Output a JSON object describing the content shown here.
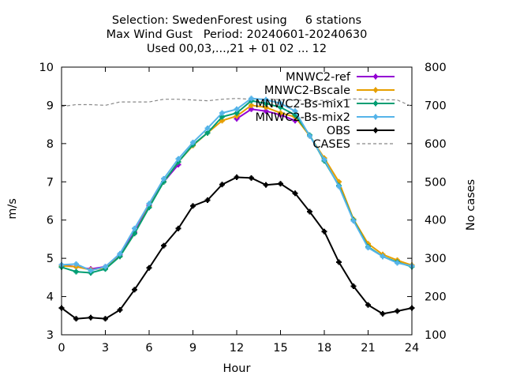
{
  "chart_data": {
    "type": "line",
    "title_lines": [
      "Selection: SwedenForest using     6 stations",
      "Max Wind Gust   Period: 20240601-20240630",
      "Used 00,03,...,21 + 01 02 ... 12"
    ],
    "xlabel": "Hour",
    "ylabel": "m/s",
    "y2label": "No cases",
    "xlim": [
      0,
      24
    ],
    "ylim": [
      3,
      10
    ],
    "y2lim": [
      100,
      800
    ],
    "x_ticks": [
      0,
      3,
      6,
      9,
      12,
      15,
      18,
      21,
      24
    ],
    "y_ticks": [
      3,
      4,
      5,
      6,
      7,
      8,
      9,
      10
    ],
    "y2_ticks": [
      100,
      200,
      300,
      400,
      500,
      600,
      700,
      800
    ],
    "grid": false,
    "legend_position": "top-right",
    "x": [
      0,
      1,
      2,
      3,
      4,
      5,
      6,
      7,
      8,
      9,
      10,
      11,
      12,
      13,
      14,
      15,
      16,
      17,
      18,
      19,
      20,
      21,
      22,
      23,
      24
    ],
    "series": [
      {
        "name": "MNWC2-ref",
        "color": "#9400d3",
        "marker": "cross",
        "values": [
          4.82,
          4.78,
          4.72,
          4.78,
          5.1,
          5.68,
          6.38,
          7.0,
          7.45,
          null,
          null,
          null,
          8.65,
          8.9,
          8.85,
          8.75,
          8.6,
          null,
          null,
          null,
          null,
          null,
          null,
          null,
          null
        ]
      },
      {
        "name": "MNWC2-Bscale",
        "color": "#e69f00",
        "marker": "cross",
        "values": [
          4.8,
          4.78,
          4.7,
          4.75,
          5.05,
          5.65,
          6.35,
          7.0,
          7.52,
          7.95,
          8.28,
          8.6,
          8.72,
          9.0,
          8.95,
          8.8,
          8.7,
          8.2,
          7.62,
          7.0,
          6.02,
          5.38,
          5.1,
          4.95,
          4.82
        ]
      },
      {
        "name": "MNWC2-Bs-mix1",
        "color": "#009e73",
        "marker": "cross",
        "values": [
          4.77,
          4.65,
          4.62,
          4.72,
          5.05,
          5.65,
          6.33,
          7.0,
          7.52,
          7.97,
          8.28,
          8.7,
          8.8,
          9.12,
          9.05,
          8.95,
          8.75,
          8.22,
          7.55,
          6.9,
          6.0,
          5.3,
          5.05,
          4.9,
          4.78
        ]
      },
      {
        "name": "MNWC2-Bs-mix2",
        "color": "#56b4e9",
        "marker": "cross",
        "values": [
          4.83,
          4.85,
          4.68,
          4.78,
          5.12,
          5.78,
          6.43,
          7.08,
          7.6,
          8.03,
          8.4,
          8.8,
          8.9,
          9.18,
          9.15,
          9.05,
          8.85,
          8.2,
          7.58,
          6.88,
          5.98,
          5.28,
          5.05,
          4.88,
          4.8
        ]
      },
      {
        "name": "OBS",
        "color": "#000000",
        "marker": "cross",
        "values": [
          3.7,
          3.42,
          3.45,
          3.42,
          3.65,
          4.18,
          4.75,
          5.33,
          5.78,
          6.37,
          6.52,
          6.93,
          7.12,
          7.1,
          6.92,
          6.95,
          6.7,
          6.22,
          5.7,
          4.9,
          4.27,
          3.78,
          3.55,
          3.62,
          3.7
        ]
      },
      {
        "name": "CASES",
        "color": "#888888",
        "axis": "y2",
        "dashed": true,
        "values": [
          697,
          702,
          702,
          700,
          709,
          709,
          709,
          716,
          716,
          714,
          712,
          716,
          718,
          716,
          717,
          715,
          714,
          712,
          713,
          712,
          717,
          716,
          715,
          714,
          697
        ]
      }
    ]
  }
}
